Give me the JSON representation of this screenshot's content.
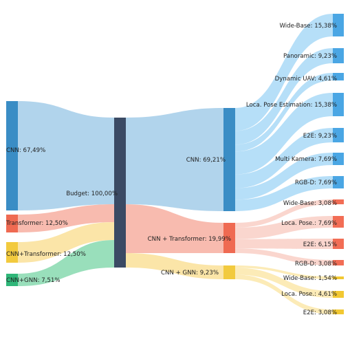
{
  "colors": {
    "cnn_node": "#3a8dc5",
    "cnn_flow": "#a9cfea",
    "cnn_leaf": "#4aa6e4",
    "cnn_leaf_flow": "#a9d9f7",
    "trans_node": "#ef6a52",
    "trans_flow": "#f7b4a6",
    "trans_leaf": "#f26d55",
    "trans_leaf_flow": "#f9cfc6",
    "gnn_node": "#f2ca3e",
    "gnn_flow": "#fbe29e",
    "gnn_leaf": "#f2c832",
    "gnn_leaf_flow": "#fbe7aa",
    "gnn_src_node": "#2fb779",
    "gnn_src_flow": "#8edbb4",
    "budget_node": "#3b4a64"
  },
  "nodes": {
    "cnn_src": {
      "label": "CNN: 67,49%",
      "value": 67.49
    },
    "trans_src": {
      "label": "Transformer: 12,50%",
      "value": 12.5
    },
    "cnntrans_src": {
      "label": "CNN+Transformer: 12,50%",
      "value": 12.5
    },
    "gnn_src": {
      "label": "CNN+GNN: 7,51%",
      "value": 7.51
    },
    "budget": {
      "label": "Budget: 100,00%",
      "value": 100.0
    },
    "cnn_mid": {
      "label": "CNN: 69,21%",
      "value": 69.21
    },
    "trans_mid": {
      "label": "CNN + Transformer: 19,99%",
      "value": 19.99
    },
    "gnn_mid": {
      "label": "CNN + GNN: 9,23%",
      "value": 9.23
    }
  },
  "leaves": {
    "cnn": [
      {
        "label": "Wide-Base: 15,38%",
        "value": 15.38
      },
      {
        "label": "Panoramic: 9,23%",
        "value": 9.23
      },
      {
        "label": "Dynamic UAV: 4,61%",
        "value": 4.61
      },
      {
        "label": "Loca. Pose Estimation: 15,38%",
        "value": 15.38
      },
      {
        "label": "E2E: 9,23%",
        "value": 9.23
      },
      {
        "label": "Multi Kamera: 7,69%",
        "value": 7.69
      },
      {
        "label": "RGB-D: 7,69%",
        "value": 7.69
      }
    ],
    "trans": [
      {
        "label": "Wide-Base: 3,08%",
        "value": 3.08
      },
      {
        "label": "Loca. Pose.: 7,69%",
        "value": 7.69
      },
      {
        "label": "E2E: 6,15%",
        "value": 6.15
      },
      {
        "label": "RGB-D: 3,08%",
        "value": 3.08
      }
    ],
    "gnn": [
      {
        "label": "Wide-Base: 1,54%",
        "value": 1.54
      },
      {
        "label": "Loca. Pose.: 4,61%",
        "value": 4.61
      },
      {
        "label": "E2E: 3,08%",
        "value": 3.08
      }
    ]
  }
}
